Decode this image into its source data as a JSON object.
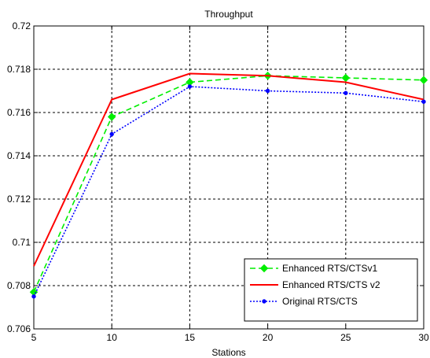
{
  "chart_data": {
    "type": "line",
    "title": "Throughput",
    "xlabel": "Stations",
    "ylabel": "",
    "x": [
      5,
      10,
      15,
      20,
      25,
      30
    ],
    "xlim": [
      5,
      30
    ],
    "ylim": [
      0.706,
      0.72
    ],
    "xticks": [
      "5",
      "10",
      "15",
      "20",
      "25",
      "30"
    ],
    "yticks": [
      "0.706",
      "0.708",
      "0.71",
      "0.712",
      "0.714",
      "0.716",
      "0.718",
      "0.72"
    ],
    "grid": true,
    "legend_position": "bottom-right",
    "series": [
      {
        "name": "Enhanced RTS/CTSv1",
        "values": [
          0.7077,
          0.7158,
          0.7174,
          0.7177,
          0.7176,
          0.7175
        ],
        "color": "#00ee00",
        "line_style": "dashed",
        "marker": "diamond"
      },
      {
        "name": "Enhanced RTS/CTS v2",
        "values": [
          0.7089,
          0.7166,
          0.7178,
          0.7177,
          0.7174,
          0.7166
        ],
        "color": "#ff0000",
        "line_style": "solid",
        "marker": "none"
      },
      {
        "name": "Original RTS/CTS",
        "values": [
          0.7075,
          0.715,
          0.7172,
          0.717,
          0.7169,
          0.7165
        ],
        "color": "#0000ff",
        "line_style": "dotted",
        "marker": "dot"
      }
    ]
  }
}
